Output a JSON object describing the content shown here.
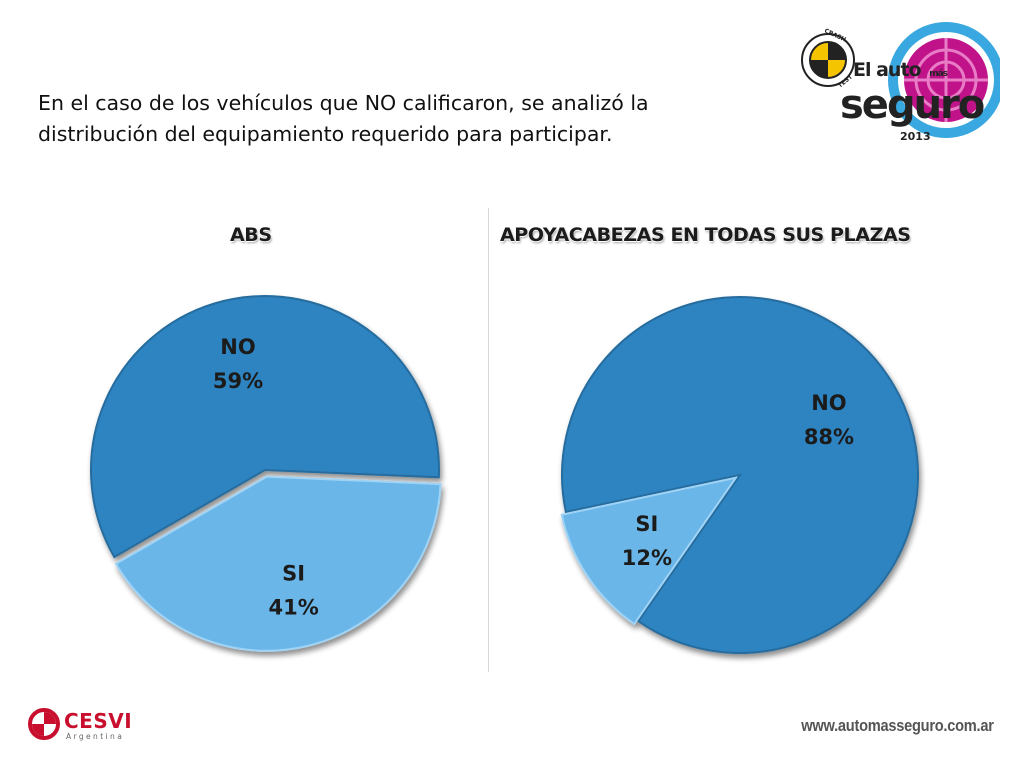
{
  "intro": {
    "line1": "En el caso de los vehículos que NO calificaron, se analizó la",
    "line2": "distribución del equipamiento requerido para participar."
  },
  "logo": {
    "crash": "CRASH",
    "test": "TEST",
    "line1_a": "El auto",
    "line1_b": "más",
    "line2": "seguro",
    "year": "2013"
  },
  "chart_data": [
    {
      "type": "pie",
      "title": "ABS",
      "slices": [
        {
          "label": "NO",
          "value": 59,
          "display": "59%",
          "color": "#2e84c0"
        },
        {
          "label": "SI",
          "value": 41,
          "display": "41%",
          "color": "#6bb6e8"
        }
      ],
      "legend": "none"
    },
    {
      "type": "pie",
      "title": "APOYACABEZAS EN TODAS SUS PLAZAS",
      "slices": [
        {
          "label": "NO",
          "value": 88,
          "display": "88%",
          "color": "#2e84c0"
        },
        {
          "label": "SI",
          "value": 12,
          "display": "12%",
          "color": "#6bb6e8"
        }
      ],
      "legend": "none"
    }
  ],
  "footer": {
    "cesvi_name": "CESVI",
    "cesvi_sub": "Argentina",
    "website": "www.automasseguro.com.ar"
  },
  "colors": {
    "no_slice": "#2e84c0",
    "si_slice": "#6bb6e8",
    "logo_magenta": "#c0138a",
    "logo_cyan": "#3aa8e0",
    "cesvi_red": "#c8102e"
  }
}
